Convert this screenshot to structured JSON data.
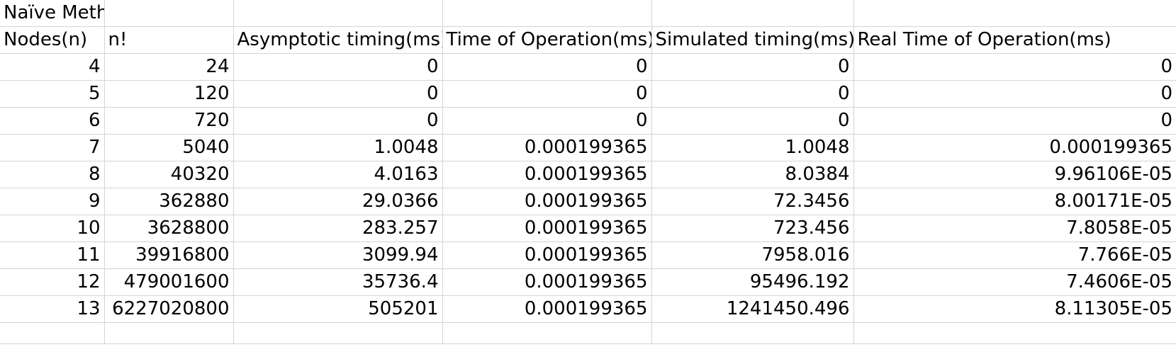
{
  "sheet": {
    "title": "Naïve Method",
    "headers": [
      "Nodes(n)",
      "n!",
      "Asymptotic timing(ms)",
      "Time of Operation(ms)",
      "Simulated timing(ms)",
      "Real Time of Operation(ms)"
    ],
    "rows": [
      [
        "4",
        "24",
        "0",
        "0",
        "0",
        "0"
      ],
      [
        "5",
        "120",
        "0",
        "0",
        "0",
        "0"
      ],
      [
        "6",
        "720",
        "0",
        "0",
        "0",
        "0"
      ],
      [
        "7",
        "5040",
        "1.0048",
        "0.000199365",
        "1.0048",
        "0.000199365"
      ],
      [
        "8",
        "40320",
        "4.0163",
        "0.000199365",
        "8.0384",
        "9.96106E-05"
      ],
      [
        "9",
        "362880",
        "29.0366",
        "0.000199365",
        "72.3456",
        "8.00171E-05"
      ],
      [
        "10",
        "3628800",
        "283.257",
        "0.000199365",
        "723.456",
        "7.8058E-05"
      ],
      [
        "11",
        "39916800",
        "3099.94",
        "0.000199365",
        "7958.016",
        "7.766E-05"
      ],
      [
        "12",
        "479001600",
        "35736.4",
        "0.000199365",
        "95496.192",
        "7.4606E-05"
      ],
      [
        "13",
        "6227020800",
        "505201",
        "0.000199365",
        "1241450.496",
        "8.11305E-05"
      ]
    ]
  }
}
